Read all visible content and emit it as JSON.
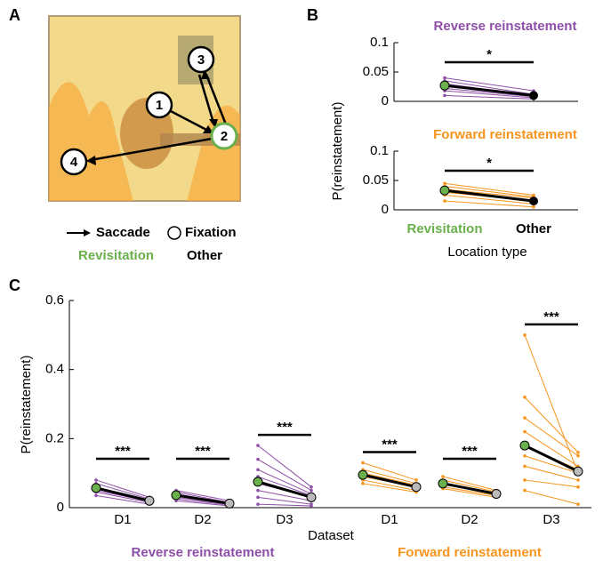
{
  "panel_labels": [
    "A",
    "B",
    "C"
  ],
  "panel_a": {
    "nodes": [
      "1",
      "2",
      "3",
      "4"
    ],
    "legend": [
      "Saccade",
      "Fixation"
    ],
    "location_types": [
      "Revisitation",
      "Other"
    ],
    "location_colors": [
      "#6ab04c",
      "#000000"
    ]
  },
  "chart_data": [
    {
      "type": "paired",
      "title": "Reverse reinstatement",
      "title_color": "#8e4fa8",
      "line_color": "#8e4fa8",
      "ylabel": "P(reinstatement)",
      "ylim": [
        0,
        0.1
      ],
      "yticks": [
        0,
        0.05,
        0.1
      ],
      "mean": [
        0.027,
        0.01
      ],
      "mean_colors": [
        "#6ab04c",
        "#000000"
      ],
      "subjects": [
        [
          0.04,
          0.018
        ],
        [
          0.035,
          0.012
        ],
        [
          0.03,
          0.01
        ],
        [
          0.022,
          0.008
        ],
        [
          0.018,
          0.006
        ],
        [
          0.01,
          0.004
        ]
      ],
      "significance": "*"
    },
    {
      "type": "paired",
      "title": "Forward reinstatement",
      "title_color": "#f7941d",
      "line_color": "#f7941d",
      "categories": [
        "Revisitation",
        "Other"
      ],
      "category_colors": [
        "#6ab04c",
        "#000000"
      ],
      "xlabel": "Location type",
      "ylim": [
        0,
        0.1
      ],
      "yticks": [
        0,
        0.05,
        0.1
      ],
      "mean": [
        0.033,
        0.015
      ],
      "mean_colors": [
        "#6ab04c",
        "#000000"
      ],
      "subjects": [
        [
          0.045,
          0.025
        ],
        [
          0.04,
          0.022
        ],
        [
          0.035,
          0.02
        ],
        [
          0.03,
          0.015
        ],
        [
          0.025,
          0.01
        ],
        [
          0.015,
          0.005
        ]
      ],
      "significance": "*"
    },
    {
      "type": "paired-groups",
      "ylabel": "P(reinstatement)",
      "xlabel": "Dataset",
      "ylim": [
        0,
        0.6
      ],
      "yticks": [
        0,
        0.2,
        0.4,
        0.6
      ],
      "mean_colors": [
        "#6ab04c",
        "#bbbbbb"
      ],
      "groups": [
        {
          "name": "Reverse reinstatement",
          "color": "#8e4fa8",
          "datasets": [
            {
              "label": "D1",
              "mean": [
                0.057,
                0.02
              ],
              "significance": "***",
              "subjects": [
                [
                  0.08,
                  0.03
                ],
                [
                  0.07,
                  0.025
                ],
                [
                  0.06,
                  0.02
                ],
                [
                  0.05,
                  0.018
                ],
                [
                  0.045,
                  0.015
                ],
                [
                  0.035,
                  0.01
                ]
              ]
            },
            {
              "label": "D2",
              "mean": [
                0.036,
                0.012
              ],
              "significance": "***",
              "subjects": [
                [
                  0.05,
                  0.02
                ],
                [
                  0.045,
                  0.015
                ],
                [
                  0.04,
                  0.012
                ],
                [
                  0.03,
                  0.01
                ],
                [
                  0.025,
                  0.008
                ],
                [
                  0.02,
                  0.005
                ]
              ]
            },
            {
              "label": "D3",
              "mean": [
                0.075,
                0.03
              ],
              "significance": "***",
              "subjects": [
                [
                  0.18,
                  0.06
                ],
                [
                  0.14,
                  0.05
                ],
                [
                  0.11,
                  0.04
                ],
                [
                  0.09,
                  0.035
                ],
                [
                  0.07,
                  0.03
                ],
                [
                  0.05,
                  0.02
                ],
                [
                  0.03,
                  0.01
                ],
                [
                  0.01,
                  0.005
                ]
              ]
            }
          ]
        },
        {
          "name": "Forward reinstatement",
          "color": "#f7941d",
          "datasets": [
            {
              "label": "D1",
              "mean": [
                0.095,
                0.06
              ],
              "significance": "***",
              "subjects": [
                [
                  0.13,
                  0.08
                ],
                [
                  0.11,
                  0.07
                ],
                [
                  0.1,
                  0.065
                ],
                [
                  0.09,
                  0.06
                ],
                [
                  0.08,
                  0.05
                ],
                [
                  0.07,
                  0.045
                ]
              ]
            },
            {
              "label": "D2",
              "mean": [
                0.07,
                0.04
              ],
              "significance": "***",
              "subjects": [
                [
                  0.09,
                  0.05
                ],
                [
                  0.08,
                  0.045
                ],
                [
                  0.07,
                  0.04
                ],
                [
                  0.06,
                  0.035
                ],
                [
                  0.055,
                  0.03
                ]
              ]
            },
            {
              "label": "D3",
              "mean": [
                0.18,
                0.105
              ],
              "significance": "***",
              "subjects": [
                [
                  0.5,
                  0.1
                ],
                [
                  0.32,
                  0.16
                ],
                [
                  0.26,
                  0.15
                ],
                [
                  0.22,
                  0.12
                ],
                [
                  0.18,
                  0.11
                ],
                [
                  0.15,
                  0.1
                ],
                [
                  0.12,
                  0.08
                ],
                [
                  0.08,
                  0.06
                ],
                [
                  0.05,
                  0.01
                ]
              ]
            }
          ]
        }
      ]
    }
  ]
}
